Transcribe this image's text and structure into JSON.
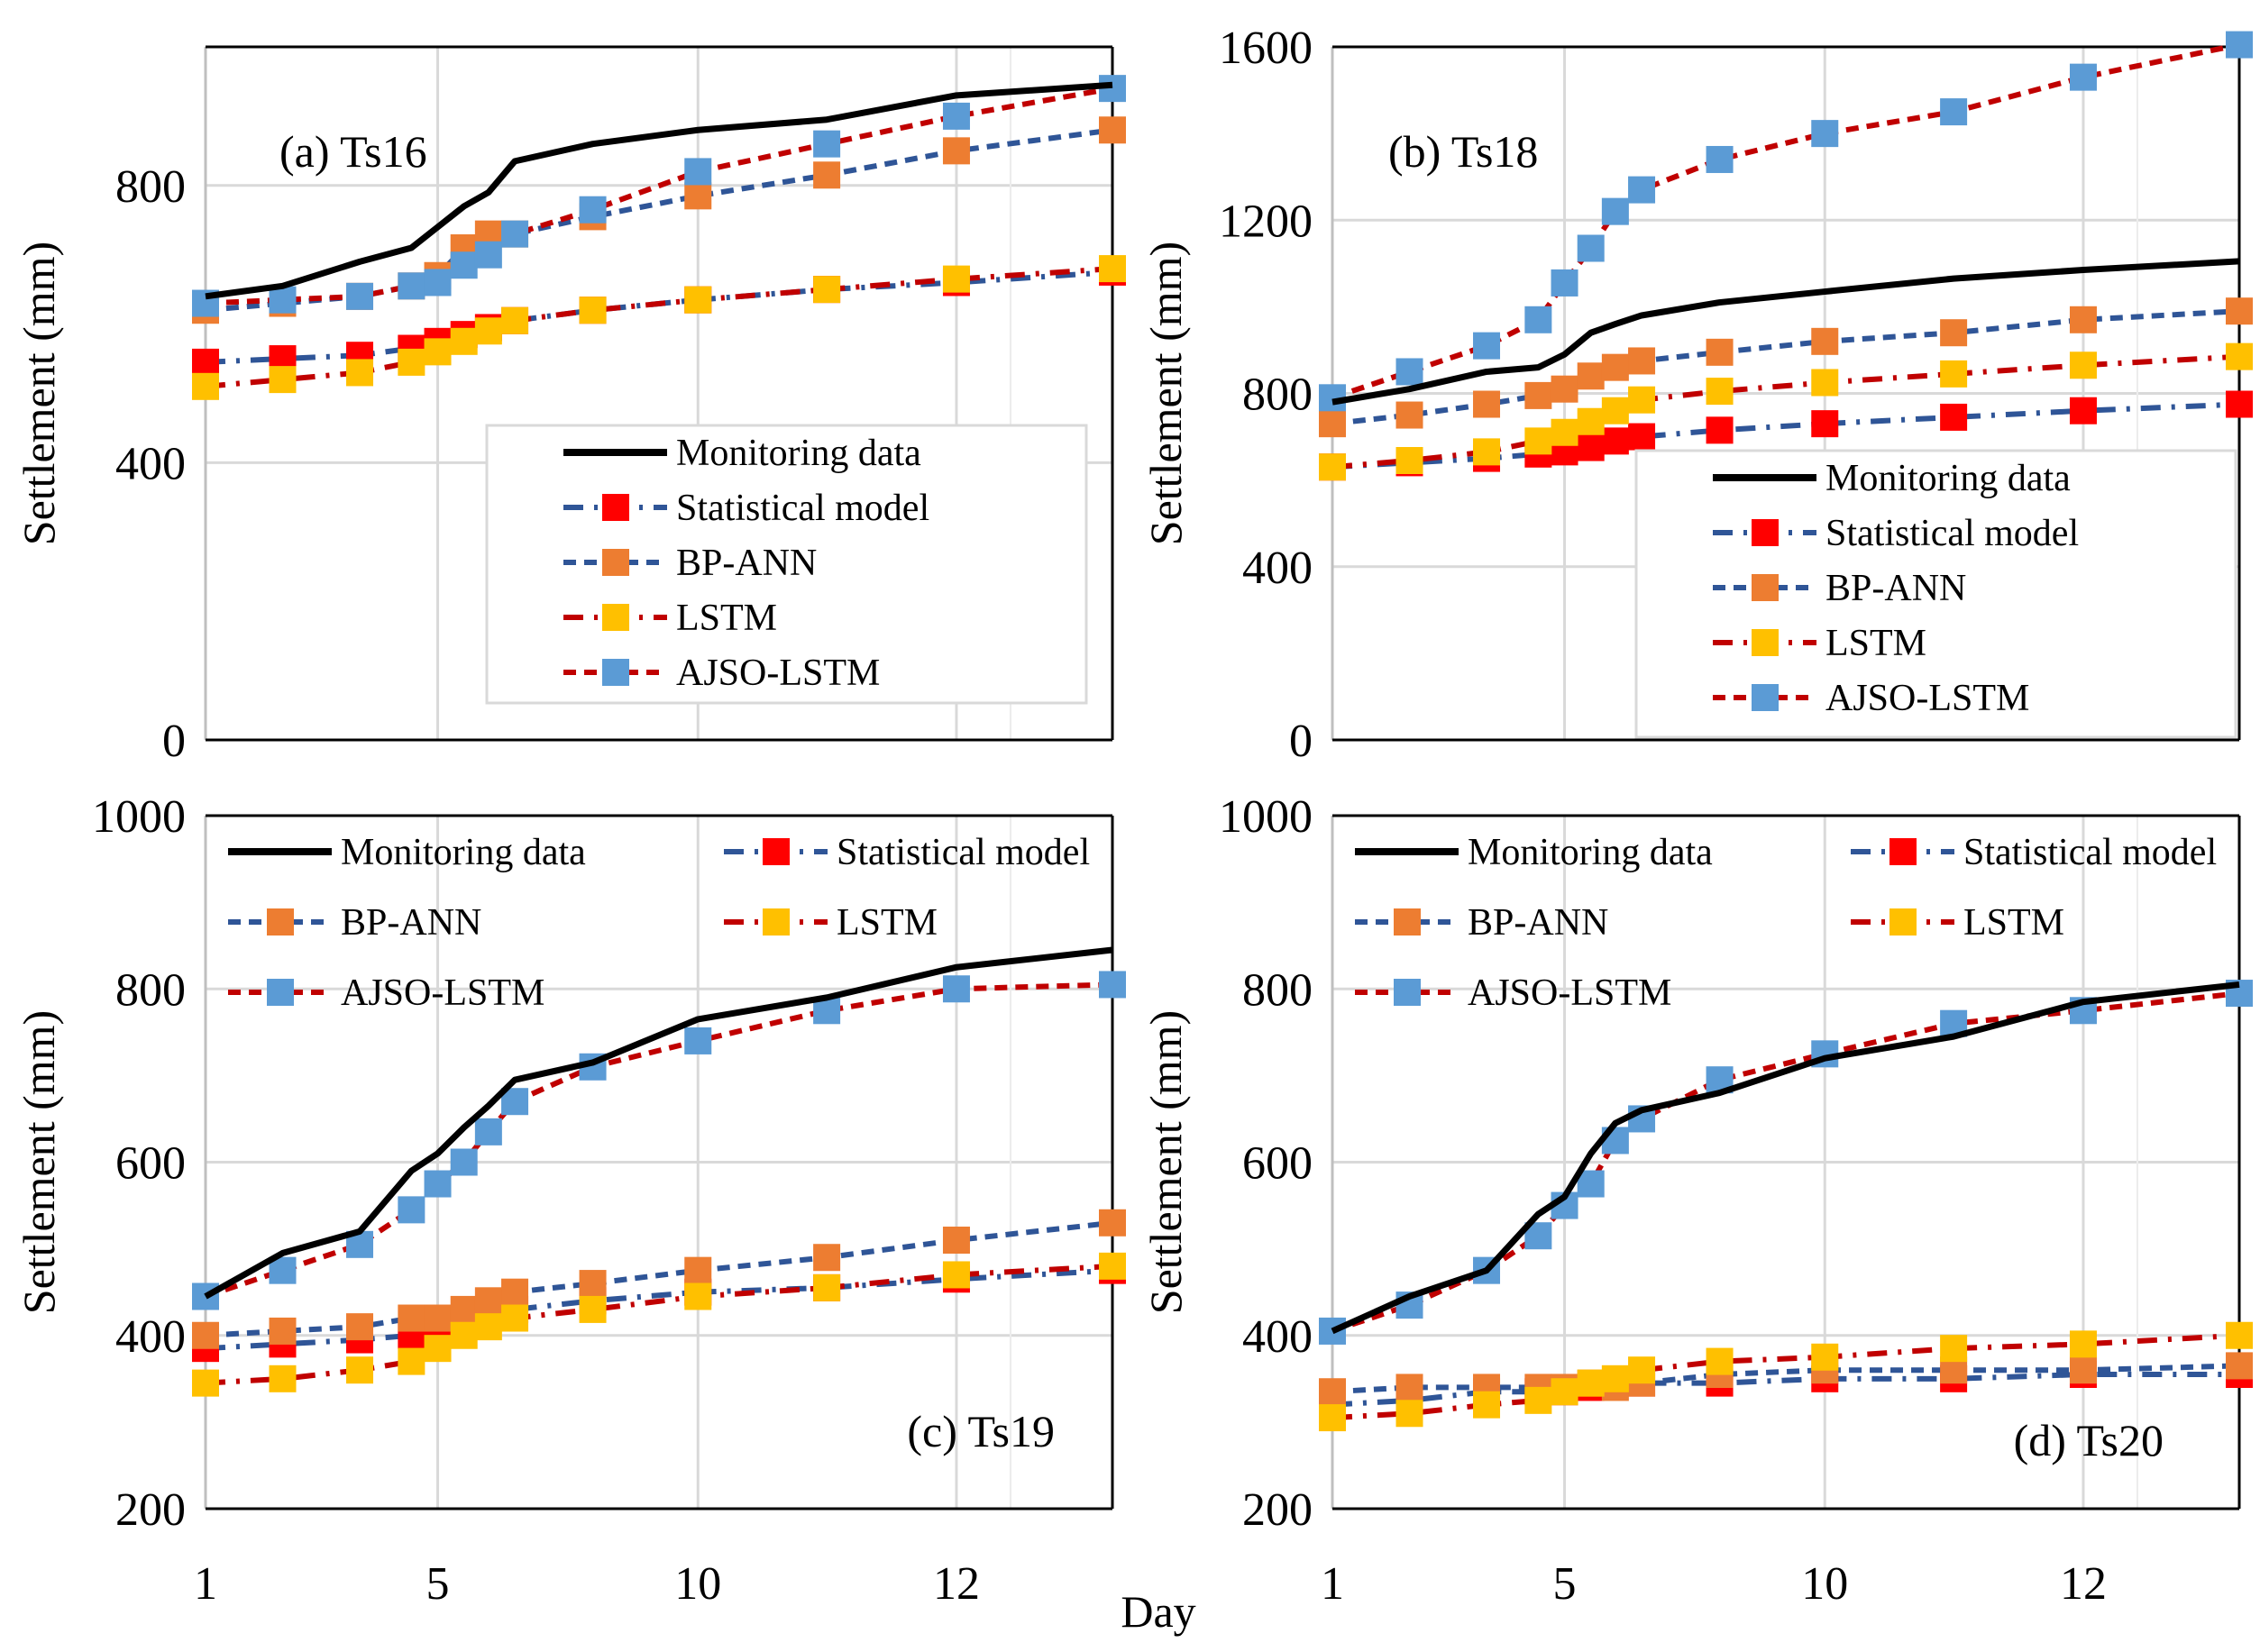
{
  "figure": {
    "xlabel": "Day",
    "ylabel": "Settlement (mm)"
  },
  "styles": {
    "monitoring": {
      "line": "#000000",
      "marker": null,
      "dash": "solid"
    },
    "statistical": {
      "line": "#2F5597",
      "marker": "#FF0000",
      "dash": "dashdot"
    },
    "bpann": {
      "line": "#2F5597",
      "marker": "#ED7D31",
      "dash": "dash"
    },
    "lstm": {
      "line": "#C00000",
      "marker": "#FFC000",
      "dash": "dashdot"
    },
    "ajso": {
      "line": "#C00000",
      "marker": "#5B9BD5",
      "dash": "dash"
    },
    "grid": "#d9d9d9"
  },
  "chart_data": [
    {
      "type": "line",
      "title": "(a) Ts16",
      "xlabel": "",
      "ylabel": "Settlement (mm)",
      "x": [
        1,
        2,
        3,
        4,
        5,
        6,
        7,
        8,
        9,
        10,
        11,
        12,
        13
      ],
      "xticks": [
        {
          "index": 0,
          "label": "1"
        },
        {
          "index": 4,
          "label": "5"
        },
        {
          "index": 9,
          "label": "10"
        },
        {
          "index": 11,
          "label": "12"
        }
      ],
      "ylim": [
        0,
        1000
      ],
      "yticks": [
        0,
        400,
        800
      ],
      "grid": true,
      "legend": {
        "placement": "bottom-right",
        "columns": 1
      },
      "series": [
        {
          "key": "monitoring",
          "name": "Monitoring data",
          "values": [
            640,
            655,
            690,
            710,
            740,
            770,
            790,
            835,
            860,
            880,
            895,
            930,
            945
          ]
        },
        {
          "key": "statistical",
          "name": "Statistical model",
          "values": [
            545,
            550,
            555,
            565,
            575,
            585,
            595,
            605,
            620,
            635,
            650,
            660,
            675
          ]
        },
        {
          "key": "bpann",
          "name": "BP-ANN",
          "values": [
            620,
            630,
            640,
            655,
            670,
            710,
            730,
            730,
            755,
            785,
            815,
            850,
            880
          ]
        },
        {
          "key": "lstm",
          "name": "LSTM",
          "values": [
            510,
            520,
            530,
            545,
            560,
            575,
            590,
            605,
            620,
            635,
            650,
            665,
            680
          ]
        },
        {
          "key": "ajso",
          "name": "AJSO-LSTM",
          "values": [
            630,
            635,
            640,
            655,
            660,
            685,
            700,
            730,
            765,
            820,
            860,
            900,
            940
          ]
        }
      ]
    },
    {
      "type": "line",
      "title": "(b) Ts18",
      "xlabel": "",
      "ylabel": "Settlement (mm)",
      "x": [
        1,
        2,
        3,
        4,
        5,
        6,
        7,
        8,
        9,
        10,
        11,
        12,
        13
      ],
      "xticks": [
        {
          "index": 0,
          "label": "1"
        },
        {
          "index": 4,
          "label": "5"
        },
        {
          "index": 9,
          "label": "10"
        },
        {
          "index": 11,
          "label": "12"
        }
      ],
      "ylim": [
        0,
        1600
      ],
      "yticks": [
        0,
        400,
        800,
        1200,
        1600
      ],
      "grid": true,
      "legend": {
        "placement": "bottom-right",
        "columns": 1
      },
      "series": [
        {
          "key": "monitoring",
          "name": "Monitoring data",
          "values": [
            780,
            810,
            850,
            860,
            890,
            940,
            960,
            980,
            1010,
            1035,
            1065,
            1085,
            1105
          ]
        },
        {
          "key": "statistical",
          "name": "Statistical model",
          "values": [
            630,
            640,
            650,
            660,
            665,
            675,
            690,
            700,
            715,
            730,
            745,
            760,
            775
          ]
        },
        {
          "key": "bpann",
          "name": "BP-ANN",
          "values": [
            730,
            750,
            775,
            795,
            810,
            840,
            860,
            875,
            895,
            920,
            940,
            970,
            990
          ]
        },
        {
          "key": "lstm",
          "name": "LSTM",
          "values": [
            630,
            645,
            665,
            690,
            710,
            735,
            760,
            785,
            805,
            825,
            845,
            865,
            885
          ]
        },
        {
          "key": "ajso",
          "name": "AJSO-LSTM",
          "values": [
            790,
            850,
            910,
            970,
            1055,
            1135,
            1220,
            1270,
            1340,
            1400,
            1450,
            1530,
            1605
          ]
        }
      ]
    },
    {
      "type": "line",
      "title": "(c) Ts19",
      "xlabel": "",
      "ylabel": "Settlement (mm)",
      "x": [
        1,
        2,
        3,
        4,
        5,
        6,
        7,
        8,
        9,
        10,
        11,
        12,
        13
      ],
      "xticks": [
        {
          "index": 0,
          "label": "1"
        },
        {
          "index": 4,
          "label": "5"
        },
        {
          "index": 9,
          "label": "10"
        },
        {
          "index": 11,
          "label": "12"
        }
      ],
      "ylim": [
        200,
        1000
      ],
      "yticks": [
        200,
        400,
        600,
        800,
        1000
      ],
      "grid": true,
      "legend": {
        "placement": "top",
        "columns": 2
      },
      "series": [
        {
          "key": "monitoring",
          "name": "Monitoring data",
          "values": [
            445,
            495,
            520,
            590,
            610,
            640,
            665,
            695,
            715,
            765,
            790,
            825,
            845
          ]
        },
        {
          "key": "statistical",
          "name": "Statistical model",
          "values": [
            385,
            390,
            395,
            400,
            405,
            415,
            425,
            430,
            440,
            450,
            455,
            465,
            475
          ]
        },
        {
          "key": "bpann",
          "name": "BP-ANN",
          "values": [
            400,
            405,
            410,
            420,
            420,
            430,
            440,
            450,
            460,
            475,
            490,
            510,
            530
          ]
        },
        {
          "key": "lstm",
          "name": "LSTM",
          "values": [
            345,
            350,
            360,
            370,
            385,
            400,
            410,
            420,
            430,
            445,
            455,
            470,
            480
          ]
        },
        {
          "key": "ajso",
          "name": "AJSO-LSTM",
          "values": [
            445,
            475,
            505,
            545,
            575,
            600,
            635,
            670,
            710,
            740,
            775,
            800,
            805
          ]
        }
      ]
    },
    {
      "type": "line",
      "title": "(d) Ts20",
      "xlabel": "",
      "ylabel": "Settlement (mm)",
      "x": [
        1,
        2,
        3,
        4,
        5,
        6,
        7,
        8,
        9,
        10,
        11,
        12,
        13
      ],
      "xticks": [
        {
          "index": 0,
          "label": "1"
        },
        {
          "index": 4,
          "label": "5"
        },
        {
          "index": 9,
          "label": "10"
        },
        {
          "index": 11,
          "label": "12"
        }
      ],
      "ylim": [
        200,
        1000
      ],
      "yticks": [
        200,
        400,
        600,
        800,
        1000
      ],
      "grid": true,
      "legend": {
        "placement": "top",
        "columns": 2
      },
      "series": [
        {
          "key": "monitoring",
          "name": "Monitoring data",
          "values": [
            405,
            445,
            475,
            540,
            560,
            610,
            645,
            660,
            680,
            720,
            745,
            785,
            805
          ]
        },
        {
          "key": "statistical",
          "name": "Statistical model",
          "values": [
            320,
            325,
            335,
            335,
            335,
            340,
            345,
            345,
            345,
            350,
            350,
            355,
            355
          ]
        },
        {
          "key": "bpann",
          "name": "BP-ANN",
          "values": [
            335,
            340,
            340,
            340,
            340,
            345,
            340,
            345,
            355,
            360,
            360,
            360,
            365
          ]
        },
        {
          "key": "lstm",
          "name": "LSTM",
          "values": [
            305,
            310,
            320,
            325,
            335,
            345,
            350,
            360,
            370,
            375,
            385,
            390,
            400
          ]
        },
        {
          "key": "ajso",
          "name": "AJSO-LSTM",
          "values": [
            405,
            435,
            475,
            515,
            550,
            575,
            625,
            650,
            695,
            725,
            760,
            775,
            795
          ]
        }
      ]
    }
  ]
}
